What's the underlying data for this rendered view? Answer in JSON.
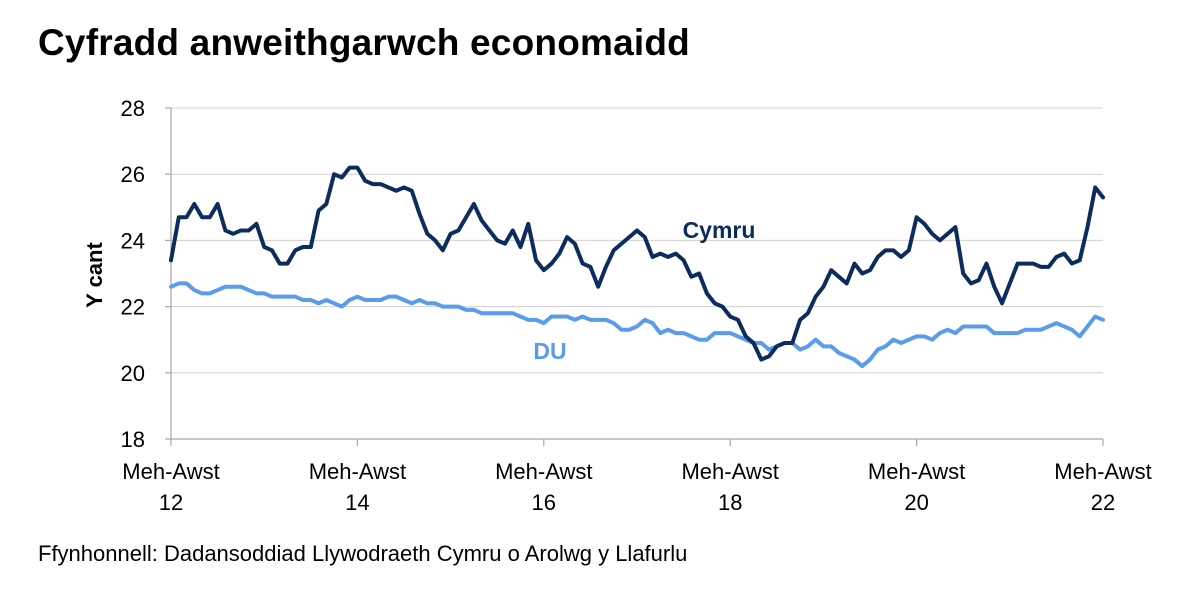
{
  "source": "Ffynhonnell: Dadansoddiad Llywodraeth Cymru o Arolwg y Llafurlu",
  "chart_data": {
    "type": "line",
    "title": "Cyfradd anweithgarwch economaidd",
    "ylabel": "Y cant",
    "xlabel": "",
    "ylim": [
      18,
      28
    ],
    "yticks": [
      18,
      20,
      22,
      24,
      26,
      28
    ],
    "grid": true,
    "x_period_start": 0,
    "x_period_end": 120,
    "x_ticks": [
      {
        "line1": "Meh-Awst",
        "line2": "12",
        "at": 0
      },
      {
        "line1": "Meh-Awst",
        "line2": "14",
        "at": 24
      },
      {
        "line1": "Meh-Awst",
        "line2": "16",
        "at": 48
      },
      {
        "line1": "Meh-Awst",
        "line2": "18",
        "at": 72
      },
      {
        "line1": "Meh-Awst",
        "line2": "20",
        "at": 96
      },
      {
        "line1": "Meh-Awst",
        "line2": "22",
        "at": 120
      }
    ],
    "series": [
      {
        "name": "Cymru",
        "color": "#0b2c5c",
        "values": [
          23.4,
          24.7,
          24.7,
          25.1,
          24.7,
          24.7,
          25.1,
          24.3,
          24.2,
          24.3,
          24.3,
          24.5,
          23.8,
          23.7,
          23.3,
          23.3,
          23.7,
          23.8,
          23.8,
          24.9,
          25.1,
          26.0,
          25.9,
          26.2,
          26.2,
          25.8,
          25.7,
          25.7,
          25.6,
          25.5,
          25.6,
          25.5,
          24.8,
          24.2,
          24.0,
          23.7,
          24.2,
          24.3,
          24.7,
          25.1,
          24.6,
          24.3,
          24.0,
          23.9,
          24.3,
          23.8,
          24.5,
          23.4,
          23.1,
          23.3,
          23.6,
          24.1,
          23.9,
          23.3,
          23.2,
          22.6,
          23.2,
          23.7,
          23.9,
          24.1,
          24.3,
          24.1,
          23.5,
          23.6,
          23.5,
          23.6,
          23.4,
          22.9,
          23.0,
          22.4,
          22.1,
          22.0,
          21.7,
          21.6,
          21.1,
          20.9,
          20.4,
          20.5,
          20.8,
          20.9,
          20.9,
          21.6,
          21.8,
          22.3,
          22.6,
          23.1,
          22.9,
          22.7,
          23.3,
          23.0,
          23.1,
          23.5,
          23.7,
          23.7,
          23.5,
          23.7,
          24.7,
          24.5,
          24.2,
          24.0,
          24.2,
          24.4,
          23.0,
          22.7,
          22.8,
          23.3,
          22.6,
          22.1,
          22.7,
          23.3,
          23.3,
          23.3,
          23.2,
          23.2,
          23.5,
          23.6,
          23.3,
          23.4,
          24.4,
          25.6,
          25.3
        ]
      },
      {
        "name": "DU",
        "color": "#5b9bec",
        "values": [
          22.6,
          22.7,
          22.7,
          22.5,
          22.4,
          22.4,
          22.5,
          22.6,
          22.6,
          22.6,
          22.5,
          22.4,
          22.4,
          22.3,
          22.3,
          22.3,
          22.3,
          22.2,
          22.2,
          22.1,
          22.2,
          22.1,
          22.0,
          22.2,
          22.3,
          22.2,
          22.2,
          22.2,
          22.3,
          22.3,
          22.2,
          22.1,
          22.2,
          22.1,
          22.1,
          22.0,
          22.0,
          22.0,
          21.9,
          21.9,
          21.8,
          21.8,
          21.8,
          21.8,
          21.8,
          21.7,
          21.6,
          21.6,
          21.5,
          21.7,
          21.7,
          21.7,
          21.6,
          21.7,
          21.6,
          21.6,
          21.6,
          21.5,
          21.3,
          21.3,
          21.4,
          21.6,
          21.5,
          21.2,
          21.3,
          21.2,
          21.2,
          21.1,
          21.0,
          21.0,
          21.2,
          21.2,
          21.2,
          21.1,
          21.0,
          20.9,
          20.9,
          20.7,
          20.8,
          20.9,
          20.9,
          20.7,
          20.8,
          21.0,
          20.8,
          20.8,
          20.6,
          20.5,
          20.4,
          20.2,
          20.4,
          20.7,
          20.8,
          21.0,
          20.9,
          21.0,
          21.1,
          21.1,
          21.0,
          21.2,
          21.3,
          21.2,
          21.4,
          21.4,
          21.4,
          21.4,
          21.2,
          21.2,
          21.2,
          21.2,
          21.3,
          21.3,
          21.3,
          21.4,
          21.5,
          21.4,
          21.3,
          21.1,
          21.4,
          21.7,
          21.6
        ]
      }
    ]
  }
}
